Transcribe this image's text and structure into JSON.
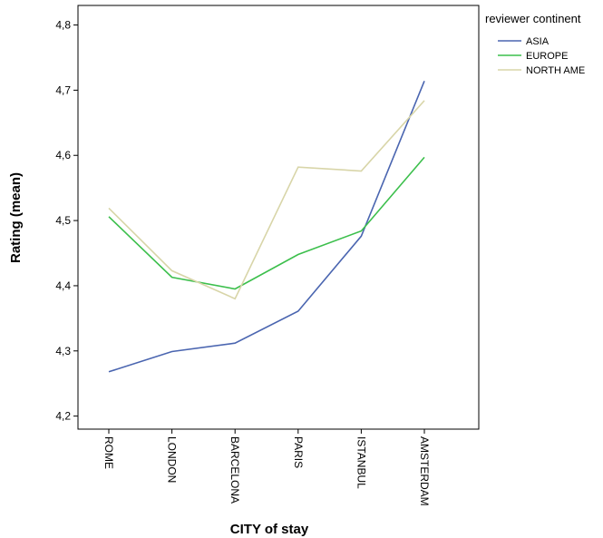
{
  "chart_data": {
    "type": "line",
    "xlabel": "CITY of stay",
    "ylabel": "Rating (mean)",
    "categories": [
      "ROME",
      "LONDON",
      "BARCELONA",
      "PARIS",
      "ISTANBUL",
      "AMSTERDAM"
    ],
    "ylim": [
      4.18,
      4.83
    ],
    "yticks": [
      4.2,
      4.3,
      4.4,
      4.5,
      4.6,
      4.7,
      4.8
    ],
    "ytick_labels": [
      "4,2",
      "4,3",
      "4,4",
      "4,5",
      "4,6",
      "4,7",
      "4,8"
    ],
    "grid": false,
    "legend": {
      "title": "reviewer continent",
      "placement": "right"
    },
    "series": [
      {
        "name": "ASIA",
        "color": "#4a65b0",
        "values": [
          4.268,
          4.299,
          4.312,
          4.361,
          4.476,
          4.714
        ]
      },
      {
        "name": "EUROPE",
        "color": "#3cbf4c",
        "values": [
          4.506,
          4.413,
          4.395,
          4.448,
          4.484,
          4.597
        ]
      },
      {
        "name": "NORTH AME",
        "color": "#d8d5a8",
        "values": [
          4.519,
          4.423,
          4.38,
          4.582,
          4.576,
          4.684
        ]
      }
    ]
  }
}
